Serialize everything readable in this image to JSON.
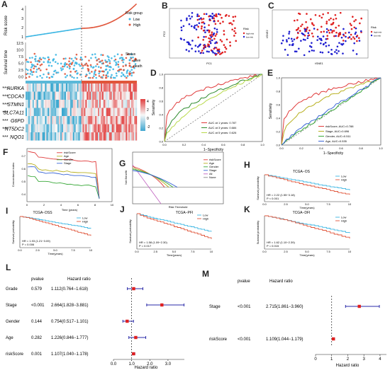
{
  "labels": {
    "A": "A",
    "B": "B",
    "C": "C",
    "D": "D",
    "E": "E",
    "F": "F",
    "G": "G",
    "H": "H",
    "I": "I",
    "J": "J",
    "K": "K",
    "L": "L",
    "M": "M"
  },
  "panelA": {
    "risk_ylabel": "Risk score",
    "surv_ylabel": "Survival time",
    "legend_title": "Risk group",
    "legend_low": "Low",
    "legend_high": "High",
    "status_title": "Status",
    "status_alive": "alive",
    "status_death": "death",
    "risk_ticks": [
      "4",
      "3",
      "2",
      "1"
    ],
    "surv_ticks": [
      "12.5",
      "10.0",
      "7.5",
      "5.0",
      "2.5",
      "0.0"
    ],
    "genes": [
      {
        "sig": "***",
        "name": "AURKA"
      },
      {
        "sig": "***",
        "name": "CDCA3"
      },
      {
        "sig": "***",
        "name": "STMN1"
      },
      {
        "sig": "***",
        "name": "SLC7A11"
      },
      {
        "sig": "***",
        "name": "G6PD"
      },
      {
        "sig": "***",
        "name": "NT5DC2"
      },
      {
        "sig": "***",
        "name": "NQO1"
      }
    ],
    "colorbar_ticks": [
      "4",
      "2",
      "0",
      "-2"
    ]
  },
  "panelB": {
    "xlabel": "PC1",
    "ylabel": "PC2",
    "legend_title": "Risk",
    "legend_high": "high risk",
    "legend_low": "low risk"
  },
  "panelC": {
    "xlabel": "tSNE1",
    "ylabel": "tSNE2",
    "legend_title": "Risk",
    "legend_high": "high risk",
    "legend_low": "low risk"
  },
  "panelD": {
    "xlabel": "1−Specificity",
    "ylabel": "Sensitivity",
    "legend": [
      "AUC at 1 years: 0.787",
      "AUC at 3 years: 0.684",
      "AUC at 5 years: 0.626"
    ],
    "colors": [
      "#e03a3a",
      "#2e8b2e",
      "#b8d94a"
    ],
    "ticks": [
      "0.0",
      "0.2",
      "0.4",
      "0.6",
      "0.8",
      "1.0"
    ]
  },
  "panelE": {
    "xlabel": "1−Specificity",
    "ylabel": "Sensitivity",
    "legend": [
      "riskScore, AUC=0.788",
      "Stage, AUC=0.696",
      "Gender, AUC=0.511",
      "Age, AUC=0.535"
    ],
    "colors": [
      "#e03a3a",
      "#b8b020",
      "#38a838",
      "#3a66d6"
    ],
    "ticks": [
      "0.0",
      "0.2",
      "0.4",
      "0.6",
      "0.8",
      "1.0"
    ]
  },
  "panelF": {
    "xlabel": "Time (years)",
    "ylabel": "Concordance index",
    "legend": [
      "riskScore",
      "Age",
      "Gender",
      "Stage"
    ],
    "colors": [
      "#e03a3a",
      "#b8b020",
      "#38a838",
      "#3a66d6"
    ],
    "xticks": [
      "0",
      "2",
      "4",
      "6",
      "8",
      "10"
    ],
    "yticks": [
      "0.7",
      "0.6",
      "0.5",
      "0.4"
    ]
  },
  "panelG": {
    "xlabel": "Risk Threshold",
    "ylabel": "Net Benefit",
    "legend": [
      "riskScore",
      "Age",
      "Gender",
      "Stage",
      "All",
      "None"
    ],
    "colors": [
      "#e03a3a",
      "#b8b020",
      "#38a838",
      "#3a66d6",
      "#c060c0",
      "#888888"
    ],
    "title_below": "TCGA−PFI"
  },
  "panelH": {
    "title": "TCGA−OS",
    "xlabel": "Time(years)",
    "ylabel": "Survival probability",
    "legend": [
      "Low",
      "High"
    ],
    "stat1": "HR = 2.22 (1.55−3.18)",
    "stat2": "P < 0.001"
  },
  "panelI": {
    "title": "TCGA−DSS",
    "xlabel": "Time(years)",
    "ylabel": "Survival probability",
    "legend": [
      "Low",
      "High"
    ],
    "stat1": "HR = 1.93 (1.21−3.09)",
    "stat2": "P = 0.006"
  },
  "panelJ": {
    "xlabel": "Time(years)",
    "ylabel": "Survival probability",
    "legend": [
      "Low",
      "High"
    ],
    "stat1": "HR = 1.58 (1.09−2.30)",
    "stat2": "P = 0.017"
  },
  "panelK": {
    "title": "TCGA−DFI",
    "xlabel": "Time(years)",
    "ylabel": "Survival probability",
    "legend": [
      "Low",
      "High"
    ],
    "stat1": "HR = 1.62 (1.10−2.39)",
    "stat2": "P = 0.015"
  },
  "panelL": {
    "col_pvalue": "pvalue",
    "col_hr": "Hazard ratio",
    "xlabel": "Hazard ratio",
    "rows": [
      {
        "name": "Grade",
        "p": "0.579",
        "hr": "1.112(0.764−1.618)",
        "est": 1.112,
        "lo": 0.764,
        "hi": 1.618
      },
      {
        "name": "Stage",
        "p": "<0.001",
        "hr": "2.664(1.828−3.881)",
        "est": 2.664,
        "lo": 1.828,
        "hi": 3.881
      },
      {
        "name": "Gender",
        "p": "0.144",
        "hr": "0.754(0.517−1.101)",
        "est": 0.754,
        "lo": 0.517,
        "hi": 1.101
      },
      {
        "name": "Age",
        "p": "0.282",
        "hr": "1.226(0.846−1.777)",
        "est": 1.226,
        "lo": 0.846,
        "hi": 1.777
      },
      {
        "name": "riskScore",
        "p": "0.001",
        "hr": "1.107(1.040−1.178)",
        "est": 1.107,
        "lo": 1.04,
        "hi": 1.178
      }
    ],
    "xticks": [
      "0.0",
      "1.0",
      "2.0",
      "3.0"
    ]
  },
  "panelM": {
    "col_pvalue": "pvalue",
    "col_hr": "Hazard ratio",
    "xlabel": "Hazard ratio",
    "rows": [
      {
        "name": "Stage",
        "p": "<0.001",
        "hr": "2.715(1.861−3.960)",
        "est": 2.715,
        "lo": 1.861,
        "hi": 3.96
      },
      {
        "name": "riskScore",
        "p": "<0.001",
        "hr": "1.109(1.044−1.179)",
        "est": 1.109,
        "lo": 1.044,
        "hi": 1.179
      }
    ],
    "xticks": [
      "0",
      "1",
      "2",
      "3",
      "4"
    ]
  },
  "chart_data": [
    {
      "type": "line",
      "title": "",
      "xlabel": "1−Specificity",
      "ylabel": "Sensitivity",
      "series": [
        {
          "name": "AUC at 1 years: 0.787",
          "values": []
        },
        {
          "name": "AUC at 3 years: 0.684",
          "values": []
        },
        {
          "name": "AUC at 5 years: 0.626",
          "values": []
        }
      ],
      "xlim": [
        0,
        1
      ],
      "ylim": [
        0,
        1
      ]
    },
    {
      "type": "line",
      "xlabel": "1−Specificity",
      "ylabel": "Sensitivity",
      "series": [
        {
          "name": "riskScore, AUC=0.788"
        },
        {
          "name": "Stage, AUC=0.696"
        },
        {
          "name": "Gender, AUC=0.511"
        },
        {
          "name": "Age, AUC=0.535"
        }
      ],
      "xlim": [
        0,
        1
      ],
      "ylim": [
        0,
        1
      ]
    },
    {
      "type": "scatter",
      "xlabel": "Hazard ratio",
      "ylabel": "",
      "categories": [
        "Grade",
        "Stage",
        "Gender",
        "Age",
        "riskScore"
      ],
      "values": [
        1.112,
        2.664,
        0.754,
        1.226,
        1.107
      ],
      "lower": [
        0.764,
        1.828,
        0.517,
        0.846,
        1.04
      ],
      "upper": [
        1.618,
        3.881,
        1.101,
        1.777,
        1.178
      ],
      "xlim": [
        0,
        3.881
      ]
    },
    {
      "type": "scatter",
      "xlabel": "Hazard ratio",
      "categories": [
        "Stage",
        "riskScore"
      ],
      "values": [
        2.715,
        1.109
      ],
      "lower": [
        1.861,
        1.044
      ],
      "upper": [
        3.96,
        1.179
      ],
      "xlim": [
        0,
        4
      ]
    }
  ]
}
